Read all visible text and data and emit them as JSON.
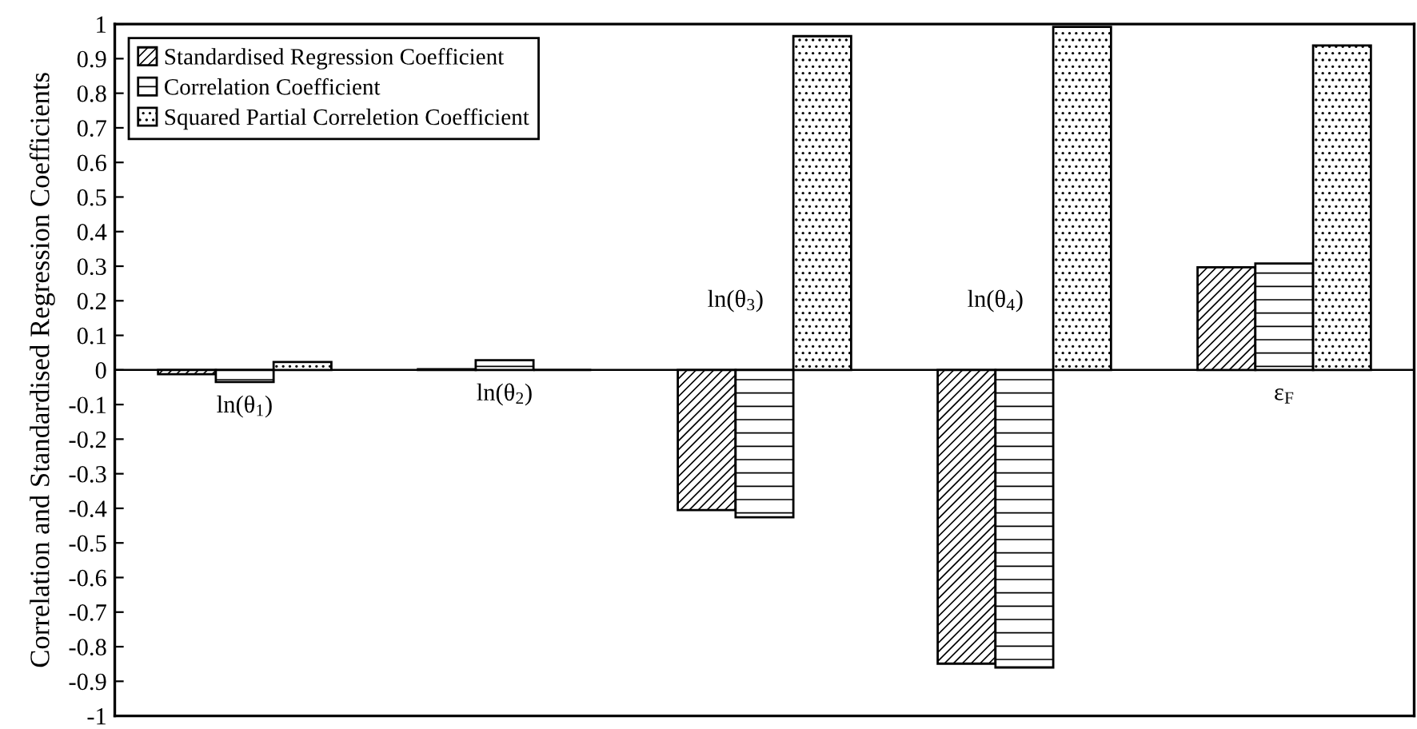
{
  "chart_data": {
    "type": "bar",
    "ylabel": "Correlation and Standardised Regression Coefficients",
    "categories": [
      "ln(θ$_{1}$)",
      "ln(θ$_{2}$)",
      "ln(θ$_{3}$)",
      "ln(θ$_{4}$)",
      "ε$_{F}$"
    ],
    "series": [
      {
        "name": "Standardised Regression Coefficient",
        "color": "#000000",
        "values": [
          -0.012,
          0.002,
          -0.405,
          -0.849,
          0.297
        ]
      },
      {
        "name": "Correlation Coefficient",
        "color": "#000000",
        "values": [
          -0.035,
          0.028,
          -0.426,
          -0.86,
          0.308
        ]
      },
      {
        "name": "Squared Partial Correletion Coefficient",
        "color": "#000000",
        "values": [
          0.023,
          0.0,
          0.965,
          0.992,
          0.938
        ]
      }
    ],
    "ylim": [
      -1,
      1
    ],
    "yticks": [
      -1,
      -0.9,
      -0.8,
      -0.7,
      -0.6,
      -0.5,
      -0.4,
      -0.3,
      -0.2,
      -0.1,
      0,
      0.1,
      0.2,
      0.3,
      0.4,
      0.5,
      0.6,
      0.7,
      0.8,
      0.9,
      1
    ],
    "legend": "top left",
    "tick_labels": "y"
  }
}
